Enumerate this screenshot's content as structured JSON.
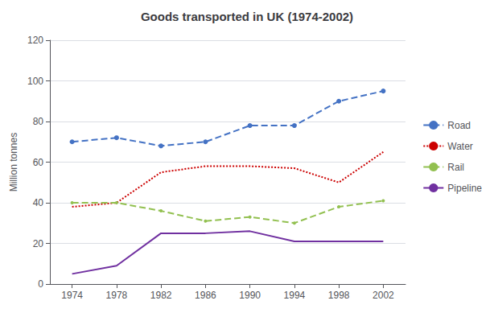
{
  "chart_data": {
    "type": "line",
    "title": "Goods transported in UK (1974-2002)",
    "ylabel": "Million tonnes",
    "x": [
      1974,
      1978,
      1982,
      1986,
      1990,
      1994,
      1998,
      2002
    ],
    "series": [
      {
        "name": "Road",
        "color": "#4472C4",
        "line_style": "dashed",
        "marker": "circle",
        "values": [
          70,
          72,
          68,
          70,
          78,
          78,
          90,
          95
        ]
      },
      {
        "name": "Water",
        "color": "#CC0000",
        "line_style": "dotted",
        "marker": "none",
        "values": [
          38,
          40,
          55,
          58,
          58,
          57,
          50,
          65
        ]
      },
      {
        "name": "Rail",
        "color": "#92C050",
        "line_style": "dashed",
        "marker": "dot",
        "values": [
          40,
          40,
          36,
          31,
          33,
          30,
          38,
          41
        ]
      },
      {
        "name": "Pipeline",
        "color": "#7030A0",
        "line_style": "solid",
        "marker": "none",
        "values": [
          5,
          9,
          25,
          25,
          26,
          21,
          21,
          21
        ]
      }
    ],
    "xlim": [
      1972,
      2004
    ],
    "xticks": [
      1974,
      1978,
      1982,
      1986,
      1990,
      1994,
      1998,
      2002
    ],
    "ylim": [
      0,
      120
    ],
    "yticks": [
      0,
      20,
      40,
      60,
      80,
      100,
      120
    ],
    "grid": true,
    "legend": "right"
  }
}
